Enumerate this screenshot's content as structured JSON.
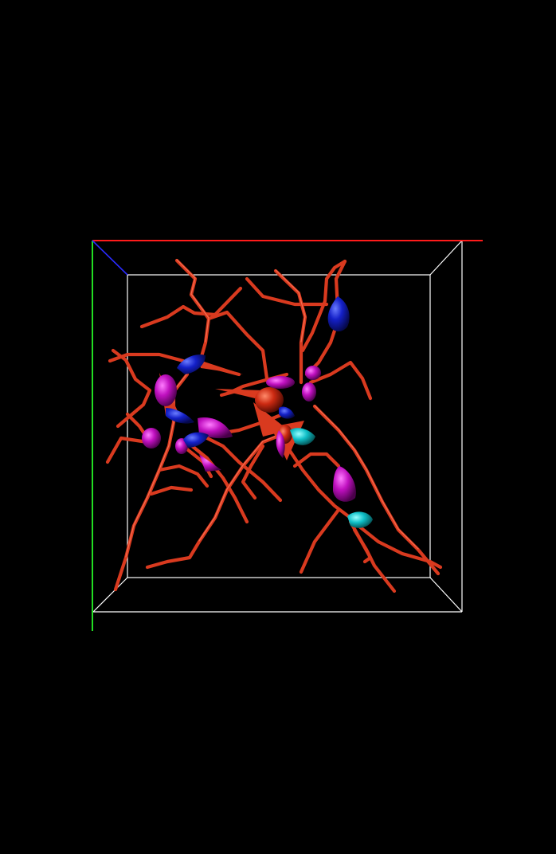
{
  "scene": {
    "background": "#000000",
    "box_color": "#ffffff",
    "axis_x_color": "#ff1a1a",
    "axis_y_color": "#22dd22",
    "axis_z_color": "#2a2aff",
    "fiber_color": "#d93a1f",
    "fiber_highlight": "#ff7a5c",
    "node_colors": {
      "magenta": "#c010c0",
      "blue": "#1420c8",
      "cyan": "#10c0c8",
      "red": "#cc2a12"
    }
  }
}
